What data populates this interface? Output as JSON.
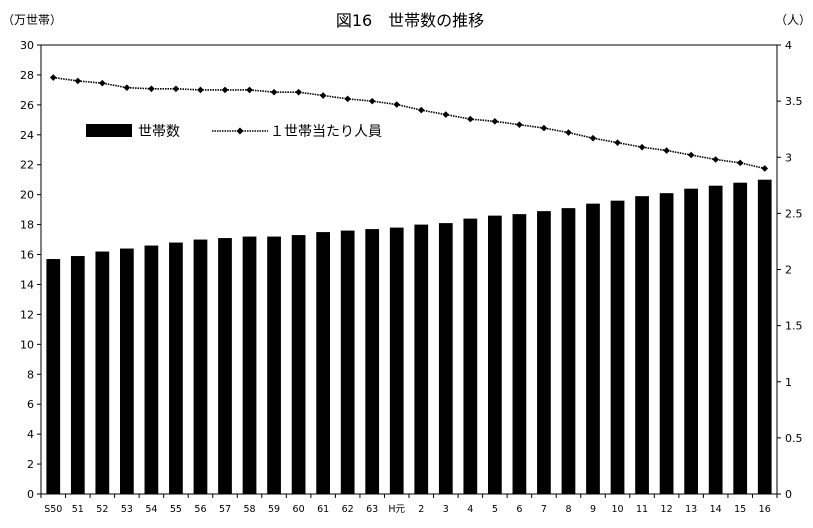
{
  "chart_data": {
    "type": "bar",
    "title": "図16　世帯数の推移",
    "left_unit": "（万世帯）",
    "right_unit": "（人）",
    "categories": [
      "S50",
      "51",
      "52",
      "53",
      "54",
      "55",
      "56",
      "57",
      "58",
      "59",
      "60",
      "61",
      "62",
      "63",
      "H元",
      "2",
      "3",
      "4",
      "5",
      "6",
      "7",
      "8",
      "9",
      "10",
      "11",
      "12",
      "13",
      "14",
      "15",
      "16"
    ],
    "series": [
      {
        "name": "世帯数",
        "type": "bar",
        "axis": "left",
        "color": "#000000",
        "values": [
          15.7,
          15.9,
          16.2,
          16.4,
          16.6,
          16.8,
          17.0,
          17.1,
          17.2,
          17.2,
          17.3,
          17.5,
          17.6,
          17.7,
          17.8,
          18.0,
          18.1,
          18.4,
          18.6,
          18.7,
          18.9,
          19.1,
          19.4,
          19.6,
          19.9,
          20.1,
          20.4,
          20.6,
          20.8,
          21.0
        ]
      },
      {
        "name": "１世帯当たり人員",
        "type": "line",
        "axis": "right",
        "color": "#000000",
        "marker": "diamond",
        "values": [
          3.71,
          3.68,
          3.66,
          3.62,
          3.61,
          3.61,
          3.6,
          3.6,
          3.6,
          3.58,
          3.58,
          3.55,
          3.52,
          3.5,
          3.47,
          3.42,
          3.38,
          3.34,
          3.32,
          3.29,
          3.26,
          3.22,
          3.17,
          3.13,
          3.09,
          3.06,
          3.02,
          2.98,
          2.95,
          2.9
        ]
      }
    ],
    "ylim_left": [
      0,
      30
    ],
    "yticks_left": [
      "0",
      "2",
      "4",
      "6",
      "8",
      "10",
      "12",
      "14",
      "16",
      "18",
      "20",
      "22",
      "24",
      "26",
      "28",
      "30"
    ],
    "ylim_right": [
      0,
      4
    ],
    "yticks_right": [
      "0",
      "0.5",
      "1",
      "1.5",
      "2",
      "2.5",
      "3",
      "3.5",
      "4"
    ],
    "grid": false,
    "legend": "upper-left"
  }
}
